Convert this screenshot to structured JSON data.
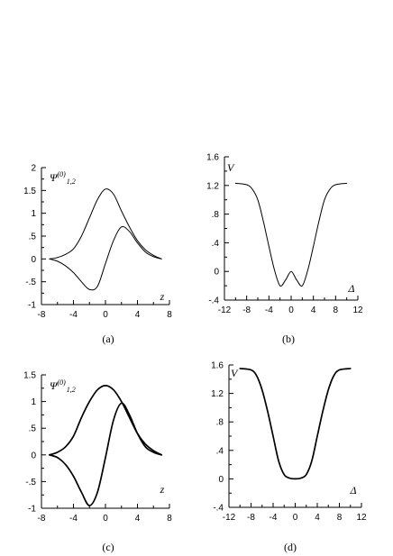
{
  "chart_data": [
    {
      "panel": "a",
      "type": "line",
      "caption": "(a)",
      "ylabel": {
        "base": "Ψ",
        "sup": "(0)",
        "sub": "1,2"
      },
      "xlabel": "z",
      "xlim": [
        -8,
        8
      ],
      "ylim": [
        -1,
        2
      ],
      "xticks": [
        -8,
        -4,
        0,
        4,
        8
      ],
      "yticks": [
        -1,
        -0.5,
        0,
        0.5,
        1,
        1.5,
        2
      ],
      "series": [
        {
          "x": [
            -7,
            -6,
            -5,
            -4,
            -3,
            -2,
            -1,
            0,
            1,
            2,
            3,
            4,
            5,
            6,
            7
          ],
          "y": [
            0.0,
            0.03,
            0.1,
            0.22,
            0.5,
            0.9,
            1.3,
            1.53,
            1.42,
            1.05,
            0.7,
            0.4,
            0.2,
            0.08,
            0.0
          ]
        },
        {
          "x": [
            -7,
            -6,
            -5,
            -4,
            -3,
            -2,
            -1,
            0,
            1,
            2,
            3,
            4,
            5,
            6,
            7
          ],
          "y": [
            0.0,
            -0.05,
            -0.15,
            -0.3,
            -0.5,
            -0.67,
            -0.6,
            -0.1,
            0.4,
            0.7,
            0.6,
            0.35,
            0.15,
            0.05,
            0.0
          ]
        }
      ]
    },
    {
      "panel": "b",
      "type": "line",
      "caption": "(b)",
      "ylabel": {
        "base": "V"
      },
      "xlabel": "Δ",
      "xlim": [
        -12,
        12
      ],
      "ylim": [
        -0.4,
        1.6
      ],
      "xticks": [
        -12,
        -8,
        -4,
        0,
        4,
        8,
        12
      ],
      "yticks": [
        -0.4,
        0,
        0.4,
        0.8,
        1.2,
        1.6
      ],
      "series": [
        {
          "x": [
            -10,
            -8,
            -7,
            -6,
            -5,
            -4,
            -3,
            -2,
            -1,
            0,
            1,
            2,
            3,
            4,
            5,
            6,
            7,
            8,
            10
          ],
          "y": [
            1.23,
            1.21,
            1.15,
            1.0,
            0.7,
            0.35,
            0.02,
            -0.2,
            -0.12,
            0.0,
            -0.12,
            -0.2,
            0.02,
            0.35,
            0.7,
            1.0,
            1.15,
            1.21,
            1.23
          ]
        }
      ]
    },
    {
      "panel": "c",
      "type": "line",
      "caption": "(c)",
      "ylabel": {
        "base": "Ψ",
        "sup": "(0)",
        "sub": "1,2"
      },
      "xlabel": "z",
      "xlim": [
        -8,
        8
      ],
      "ylim": [
        -1,
        1.5
      ],
      "xticks": [
        -8,
        -4,
        0,
        4,
        8
      ],
      "yticks": [
        -1,
        -0.5,
        0,
        0.5,
        1,
        1.5
      ],
      "series": [
        {
          "x": [
            -7,
            -6,
            -5,
            -4,
            -3,
            -2,
            -1,
            0,
            1,
            2,
            3,
            4,
            5,
            6,
            7
          ],
          "y": [
            0.0,
            0.05,
            0.15,
            0.35,
            0.7,
            1.0,
            1.22,
            1.3,
            1.22,
            1.0,
            0.7,
            0.4,
            0.2,
            0.08,
            0.0
          ]
        },
        {
          "x": [
            -7,
            -6,
            -5,
            -4,
            -3,
            -2,
            -1,
            0,
            1,
            2,
            3,
            4,
            5,
            6,
            7
          ],
          "y": [
            0.0,
            -0.05,
            -0.18,
            -0.4,
            -0.7,
            -0.95,
            -0.7,
            -0.05,
            0.65,
            0.97,
            0.75,
            0.4,
            0.15,
            0.05,
            0.0
          ]
        }
      ]
    },
    {
      "panel": "d",
      "type": "line",
      "caption": "(d)",
      "ylabel": {
        "base": "V"
      },
      "xlabel": "Δ",
      "xlim": [
        -12,
        12
      ],
      "ylim": [
        -0.4,
        1.6
      ],
      "xticks": [
        -12,
        -8,
        -4,
        0,
        4,
        8,
        12
      ],
      "yticks": [
        -0.4,
        0,
        0.4,
        0.8,
        1.2,
        1.6
      ],
      "series": [
        {
          "x": [
            -10,
            -8,
            -7,
            -6,
            -5,
            -4,
            -3,
            -2,
            -1,
            0,
            1,
            2,
            3,
            4,
            5,
            6,
            7,
            8,
            10
          ],
          "y": [
            1.55,
            1.53,
            1.45,
            1.25,
            0.95,
            0.6,
            0.25,
            0.06,
            0.01,
            0.0,
            0.01,
            0.06,
            0.25,
            0.6,
            0.95,
            1.25,
            1.45,
            1.53,
            1.55
          ]
        }
      ]
    }
  ]
}
